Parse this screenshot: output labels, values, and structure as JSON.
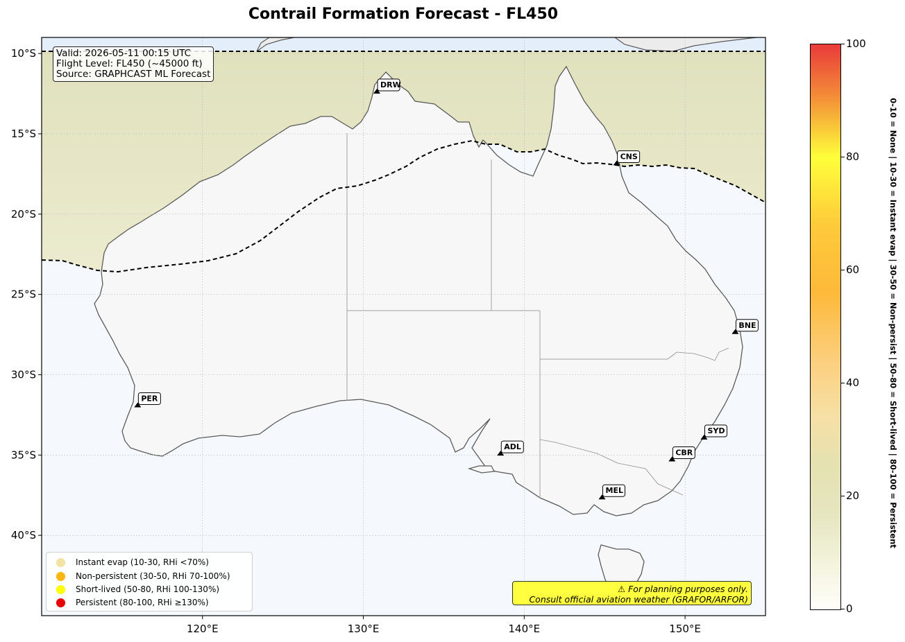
{
  "title": "Contrail Formation Forecast - FL450",
  "info": {
    "valid": "Valid: 2026-05-11 00:15 UTC",
    "flight_level": "Flight Level: FL450 (~45000 ft)",
    "source": "Source: GRAPHCAST ML Forecast"
  },
  "axes": {
    "lon_labels": [
      "120°E",
      "130°E",
      "140°E",
      "150°E"
    ],
    "lat_labels": [
      "10°S",
      "15°S",
      "20°S",
      "25°S",
      "30°S",
      "35°S",
      "40°S"
    ],
    "lon_values": [
      120,
      130,
      140,
      150
    ],
    "lat_values": [
      -10,
      -15,
      -20,
      -25,
      -30,
      -35,
      -40
    ],
    "extent": {
      "lon_min": 110,
      "lon_max": 155,
      "lat_min": -45,
      "lat_max": -9
    }
  },
  "airports": [
    {
      "code": "DRW",
      "lon": 130.84,
      "lat": -12.41
    },
    {
      "code": "CNS",
      "lon": 145.75,
      "lat": -16.88
    },
    {
      "code": "BNE",
      "lon": 153.12,
      "lat": -27.38
    },
    {
      "code": "PER",
      "lon": 115.97,
      "lat": -31.94
    },
    {
      "code": "SYD",
      "lon": 151.18,
      "lat": -33.95
    },
    {
      "code": "ADL",
      "lon": 138.53,
      "lat": -34.95
    },
    {
      "code": "CBR",
      "lon": 149.19,
      "lat": -35.31
    },
    {
      "code": "MEL",
      "lon": 144.84,
      "lat": -37.67
    }
  ],
  "legend": [
    {
      "label": "Instant evap (10-30, RHi <70%)",
      "color": "#f2e3a3"
    },
    {
      "label": "Non-persistent (30-50, RHi 70-100%)",
      "color": "#ffb612"
    },
    {
      "label": "Short-lived (50-80, RHi 100-130%)",
      "color": "#ffff00"
    },
    {
      "label": "Persistent (80-100, RHi ≥130%)",
      "color": "#e60000"
    }
  ],
  "warning": {
    "line1": "⚠ For planning purposes only.",
    "line2": "Consult official aviation weather (GRAFOR/ARFOR)"
  },
  "colorbar": {
    "ticks": [
      "0",
      "20",
      "40",
      "60",
      "80",
      "100"
    ],
    "tick_values": [
      0,
      20,
      40,
      60,
      80,
      100
    ],
    "side_label": "0-10 = None  |  10-30 = Instant evap  |  30-50 = Non-persist  |  50-80 = Short-lived  |  80-100 = Persistent"
  }
}
